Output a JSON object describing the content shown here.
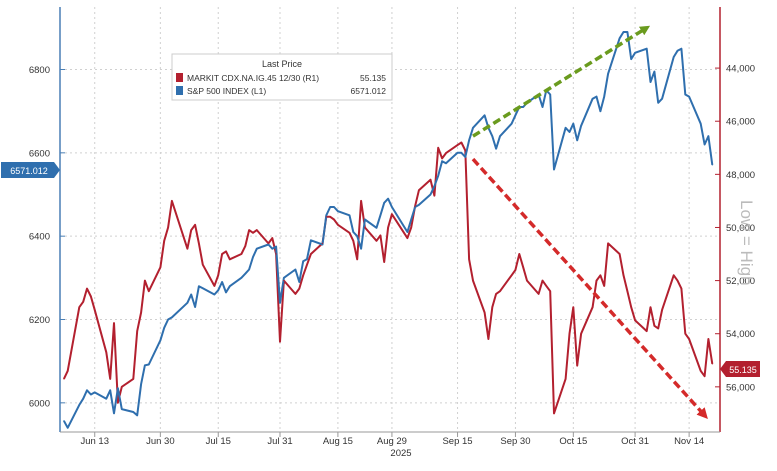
{
  "chart_data": {
    "type": "line",
    "legend": {
      "title": "Last Price",
      "placement": "top-left",
      "entries": [
        {
          "label": "MARKIT CDX.NA.IG.45 12/30  (R1)",
          "value": "55.135",
          "color": "#b3202f"
        },
        {
          "label": "S&P 500 INDEX  (L1)",
          "value": "6571.012",
          "color": "#2f6fae"
        }
      ]
    },
    "x_ticks": [
      {
        "label": "Jun 13",
        "date": "2025-06-13"
      },
      {
        "label": "Jun 30",
        "date": "2025-06-30"
      },
      {
        "label": "Jul 15",
        "date": "2025-07-15"
      },
      {
        "label": "Jul 31",
        "date": "2025-07-31"
      },
      {
        "label": "Aug 15",
        "date": "2025-08-15"
      },
      {
        "label": "Aug 29",
        "date": "2025-08-29"
      },
      {
        "label": "Sep 15",
        "date": "2025-09-15"
      },
      {
        "label": "Sep 30",
        "date": "2025-09-30"
      },
      {
        "label": "Oct 15",
        "date": "2025-10-15"
      },
      {
        "label": "Oct 31",
        "date": "2025-10-31"
      },
      {
        "label": "Nov 14",
        "date": "2025-11-14"
      }
    ],
    "x_year_label": "2025",
    "x_range": [
      "2025-06-04",
      "2025-11-22"
    ],
    "y_left": {
      "range": [
        5930,
        6950
      ],
      "ticks": [
        6000,
        6200,
        6400,
        6600,
        6800
      ]
    },
    "y_right": {
      "range": [
        57700,
        41700
      ],
      "inverted": true,
      "ticks": [
        "44,000",
        "46,000",
        "48,000",
        "50,000",
        "52,000",
        "54,000",
        "56,000"
      ],
      "label": "Low = High"
    },
    "grid": true,
    "left_last_value": "6571.012",
    "right_last_value": "55.135",
    "series": [
      {
        "name": "S&P 500 INDEX",
        "axis": "left",
        "color": "#2f6fae",
        "points": [
          [
            "2025-06-05",
            5957
          ],
          [
            "2025-06-06",
            5940
          ],
          [
            "2025-06-09",
            5995
          ],
          [
            "2025-06-10",
            6010
          ],
          [
            "2025-06-11",
            6030
          ],
          [
            "2025-06-12",
            6020
          ],
          [
            "2025-06-13",
            6025
          ],
          [
            "2025-06-16",
            6010
          ],
          [
            "2025-06-17",
            6030
          ],
          [
            "2025-06-18",
            5975
          ],
          [
            "2025-06-19",
            6035
          ],
          [
            "2025-06-20",
            5985
          ],
          [
            "2025-06-23",
            5978
          ],
          [
            "2025-06-24",
            5970
          ],
          [
            "2025-06-25",
            6045
          ],
          [
            "2025-06-26",
            6090
          ],
          [
            "2025-06-27",
            6092
          ],
          [
            "2025-06-30",
            6150
          ],
          [
            "2025-07-01",
            6180
          ],
          [
            "2025-07-02",
            6200
          ],
          [
            "2025-07-03",
            6205
          ],
          [
            "2025-07-07",
            6240
          ],
          [
            "2025-07-08",
            6260
          ],
          [
            "2025-07-09",
            6230
          ],
          [
            "2025-07-10",
            6280
          ],
          [
            "2025-07-11",
            6275
          ],
          [
            "2025-07-14",
            6260
          ],
          [
            "2025-07-15",
            6270
          ],
          [
            "2025-07-16",
            6290
          ],
          [
            "2025-07-17",
            6265
          ],
          [
            "2025-07-18",
            6280
          ],
          [
            "2025-07-21",
            6300
          ],
          [
            "2025-07-22",
            6310
          ],
          [
            "2025-07-23",
            6320
          ],
          [
            "2025-07-24",
            6350
          ],
          [
            "2025-07-25",
            6370
          ],
          [
            "2025-07-28",
            6380
          ],
          [
            "2025-07-29",
            6370
          ],
          [
            "2025-07-30",
            6375
          ],
          [
            "2025-07-31",
            6240
          ],
          [
            "2025-08-01",
            6300
          ],
          [
            "2025-08-04",
            6320
          ],
          [
            "2025-08-05",
            6290
          ],
          [
            "2025-08-06",
            6340
          ],
          [
            "2025-08-07",
            6345
          ],
          [
            "2025-08-08",
            6390
          ],
          [
            "2025-08-11",
            6380
          ],
          [
            "2025-08-12",
            6450
          ],
          [
            "2025-08-13",
            6470
          ],
          [
            "2025-08-14",
            6470
          ],
          [
            "2025-08-15",
            6460
          ],
          [
            "2025-08-18",
            6450
          ],
          [
            "2025-08-19",
            6410
          ],
          [
            "2025-08-20",
            6400
          ],
          [
            "2025-08-21",
            6370
          ],
          [
            "2025-08-22",
            6440
          ],
          [
            "2025-08-25",
            6420
          ],
          [
            "2025-08-26",
            6450
          ],
          [
            "2025-08-27",
            6480
          ],
          [
            "2025-08-28",
            6490
          ],
          [
            "2025-08-29",
            6470
          ],
          [
            "2025-09-02",
            6410
          ],
          [
            "2025-09-03",
            6440
          ],
          [
            "2025-09-04",
            6470
          ],
          [
            "2025-09-05",
            6475
          ],
          [
            "2025-09-08",
            6500
          ],
          [
            "2025-09-09",
            6520
          ],
          [
            "2025-09-10",
            6545
          ],
          [
            "2025-09-11",
            6580
          ],
          [
            "2025-09-12",
            6575
          ],
          [
            "2025-09-15",
            6600
          ],
          [
            "2025-09-16",
            6600
          ],
          [
            "2025-09-17",
            6590
          ],
          [
            "2025-09-18",
            6630
          ],
          [
            "2025-09-19",
            6660
          ],
          [
            "2025-09-22",
            6690
          ],
          [
            "2025-09-23",
            6660
          ],
          [
            "2025-09-24",
            6640
          ],
          [
            "2025-09-25",
            6610
          ],
          [
            "2025-09-26",
            6640
          ],
          [
            "2025-09-29",
            6670
          ],
          [
            "2025-09-30",
            6690
          ],
          [
            "2025-10-01",
            6710
          ],
          [
            "2025-10-02",
            6710
          ],
          [
            "2025-10-03",
            6720
          ],
          [
            "2025-10-06",
            6740
          ],
          [
            "2025-10-07",
            6710
          ],
          [
            "2025-10-08",
            6750
          ],
          [
            "2025-10-09",
            6740
          ],
          [
            "2025-10-10",
            6560
          ],
          [
            "2025-10-13",
            6660
          ],
          [
            "2025-10-14",
            6650
          ],
          [
            "2025-10-15",
            6670
          ],
          [
            "2025-10-16",
            6630
          ],
          [
            "2025-10-17",
            6665
          ],
          [
            "2025-10-20",
            6730
          ],
          [
            "2025-10-21",
            6735
          ],
          [
            "2025-10-22",
            6700
          ],
          [
            "2025-10-23",
            6735
          ],
          [
            "2025-10-24",
            6790
          ],
          [
            "2025-10-27",
            6875
          ],
          [
            "2025-10-28",
            6890
          ],
          [
            "2025-10-29",
            6890
          ],
          [
            "2025-10-30",
            6825
          ],
          [
            "2025-10-31",
            6840
          ],
          [
            "2025-11-03",
            6850
          ],
          [
            "2025-11-04",
            6770
          ],
          [
            "2025-11-05",
            6795
          ],
          [
            "2025-11-06",
            6720
          ],
          [
            "2025-11-07",
            6730
          ],
          [
            "2025-11-10",
            6830
          ],
          [
            "2025-11-11",
            6845
          ],
          [
            "2025-11-12",
            6850
          ],
          [
            "2025-11-13",
            6740
          ],
          [
            "2025-11-14",
            6735
          ],
          [
            "2025-11-17",
            6670
          ],
          [
            "2025-11-18",
            6620
          ],
          [
            "2025-11-19",
            6640
          ],
          [
            "2025-11-20",
            6571
          ]
        ]
      },
      {
        "name": "MARKIT CDX.NA.IG.45 12/30",
        "axis": "right",
        "color": "#b3202f",
        "points": [
          [
            "2025-06-05",
            55.7
          ],
          [
            "2025-06-06",
            55.4
          ],
          [
            "2025-06-09",
            53.0
          ],
          [
            "2025-06-10",
            52.8
          ],
          [
            "2025-06-11",
            52.3
          ],
          [
            "2025-06-12",
            52.6
          ],
          [
            "2025-06-13",
            53.1
          ],
          [
            "2025-06-16",
            54.7
          ],
          [
            "2025-06-17",
            55.7
          ],
          [
            "2025-06-18",
            53.6
          ],
          [
            "2025-06-19",
            56.6
          ],
          [
            "2025-06-20",
            56.0
          ],
          [
            "2025-06-23",
            55.7
          ],
          [
            "2025-06-24",
            53.9
          ],
          [
            "2025-06-25",
            53.2
          ],
          [
            "2025-06-26",
            52.0
          ],
          [
            "2025-06-27",
            52.4
          ],
          [
            "2025-06-30",
            51.5
          ],
          [
            "2025-07-01",
            50.5
          ],
          [
            "2025-07-02",
            50.0
          ],
          [
            "2025-07-03",
            49.0
          ],
          [
            "2025-07-07",
            50.8
          ],
          [
            "2025-07-08",
            50.1
          ],
          [
            "2025-07-09",
            49.9
          ],
          [
            "2025-07-10",
            50.6
          ],
          [
            "2025-07-11",
            51.4
          ],
          [
            "2025-07-14",
            52.2
          ],
          [
            "2025-07-15",
            51.8
          ],
          [
            "2025-07-16",
            51.0
          ],
          [
            "2025-07-17",
            50.9
          ],
          [
            "2025-07-18",
            51.2
          ],
          [
            "2025-07-21",
            51.0
          ],
          [
            "2025-07-22",
            50.7
          ],
          [
            "2025-07-23",
            50.1
          ],
          [
            "2025-07-24",
            50.2
          ],
          [
            "2025-07-25",
            50.1
          ],
          [
            "2025-07-28",
            50.6
          ],
          [
            "2025-07-29",
            50.4
          ],
          [
            "2025-07-30",
            51.0
          ],
          [
            "2025-07-31",
            54.3
          ],
          [
            "2025-08-01",
            52.0
          ],
          [
            "2025-08-04",
            52.5
          ],
          [
            "2025-08-05",
            52.3
          ],
          [
            "2025-08-06",
            51.8
          ],
          [
            "2025-08-07",
            51.4
          ],
          [
            "2025-08-08",
            51.0
          ],
          [
            "2025-08-11",
            50.6
          ],
          [
            "2025-08-12",
            49.6
          ],
          [
            "2025-08-13",
            49.6
          ],
          [
            "2025-08-14",
            49.7
          ],
          [
            "2025-08-15",
            49.9
          ],
          [
            "2025-08-18",
            50.2
          ],
          [
            "2025-08-19",
            50.5
          ],
          [
            "2025-08-20",
            51.2
          ],
          [
            "2025-08-21",
            49.0
          ],
          [
            "2025-08-22",
            50.0
          ],
          [
            "2025-08-25",
            50.5
          ],
          [
            "2025-08-26",
            50.3
          ],
          [
            "2025-08-27",
            51.3
          ],
          [
            "2025-08-28",
            50.0
          ],
          [
            "2025-08-29",
            49.5
          ],
          [
            "2025-09-02",
            50.4
          ],
          [
            "2025-09-03",
            50.0
          ],
          [
            "2025-09-04",
            49.2
          ],
          [
            "2025-09-05",
            48.6
          ],
          [
            "2025-09-08",
            48.2
          ],
          [
            "2025-09-09",
            48.8
          ],
          [
            "2025-09-10",
            47.0
          ],
          [
            "2025-09-11",
            47.4
          ],
          [
            "2025-09-12",
            47.2
          ],
          [
            "2025-09-15",
            46.9
          ],
          [
            "2025-09-16",
            46.8
          ],
          [
            "2025-09-17",
            47.1
          ],
          [
            "2025-09-18",
            51.2
          ],
          [
            "2025-09-19",
            52.0
          ],
          [
            "2025-09-22",
            53.2
          ],
          [
            "2025-09-23",
            54.2
          ],
          [
            "2025-09-24",
            53.0
          ],
          [
            "2025-09-25",
            52.5
          ],
          [
            "2025-09-26",
            52.4
          ],
          [
            "2025-09-29",
            51.8
          ],
          [
            "2025-09-30",
            51.6
          ],
          [
            "2025-10-01",
            51.0
          ],
          [
            "2025-10-02",
            51.5
          ],
          [
            "2025-10-03",
            52.0
          ],
          [
            "2025-10-06",
            52.5
          ],
          [
            "2025-10-07",
            52.0
          ],
          [
            "2025-10-08",
            52.2
          ],
          [
            "2025-10-09",
            52.4
          ],
          [
            "2025-10-10",
            57.0
          ],
          [
            "2025-10-13",
            55.7
          ],
          [
            "2025-10-14",
            54.0
          ],
          [
            "2025-10-15",
            53.0
          ],
          [
            "2025-10-16",
            55.2
          ],
          [
            "2025-10-17",
            54.0
          ],
          [
            "2025-10-20",
            53.0
          ],
          [
            "2025-10-21",
            52.0
          ],
          [
            "2025-10-22",
            51.8
          ],
          [
            "2025-10-23",
            52.2
          ],
          [
            "2025-10-24",
            50.6
          ],
          [
            "2025-10-27",
            51.0
          ],
          [
            "2025-10-28",
            51.8
          ],
          [
            "2025-10-29",
            52.4
          ],
          [
            "2025-10-30",
            53.0
          ],
          [
            "2025-10-31",
            53.5
          ],
          [
            "2025-11-03",
            53.9
          ],
          [
            "2025-11-04",
            53.0
          ],
          [
            "2025-11-05",
            53.7
          ],
          [
            "2025-11-06",
            53.8
          ],
          [
            "2025-11-07",
            53.1
          ],
          [
            "2025-11-10",
            51.8
          ],
          [
            "2025-11-11",
            52.0
          ],
          [
            "2025-11-12",
            52.3
          ],
          [
            "2025-11-13",
            54.0
          ],
          [
            "2025-11-14",
            54.2
          ],
          [
            "2025-11-17",
            55.4
          ],
          [
            "2025-11-18",
            55.6
          ],
          [
            "2025-11-19",
            54.2
          ],
          [
            "2025-11-20",
            55.135
          ]
        ]
      }
    ],
    "annotations": [
      {
        "kind": "arrow",
        "color": "#6a9b1e",
        "from": [
          "2025-09-19",
          6640
        ],
        "to": [
          "2025-11-03",
          6900
        ]
      },
      {
        "kind": "arrow",
        "color": "#d42a2a",
        "from": [
          "2025-09-19",
          6585
        ],
        "to": [
          "2025-11-18",
          5970
        ]
      }
    ]
  }
}
